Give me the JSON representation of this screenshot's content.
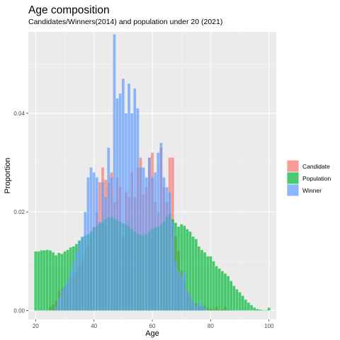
{
  "chart_data": {
    "type": "bar",
    "title": "Age composition",
    "subtitle": "Candidates/Winners(2014) and population under 20 (2021)",
    "xlabel": "Age",
    "ylabel": "Proportion",
    "xlim": [
      17.5,
      102.5
    ],
    "ylim": [
      -0.0018,
      0.0565
    ],
    "x_ticks": [
      20,
      40,
      60,
      80,
      100
    ],
    "y_ticks": [
      0.0,
      0.02,
      0.04
    ],
    "y_tick_labels": [
      "0.00",
      "0.02",
      "0.04"
    ],
    "grid": true,
    "legend_position": "right",
    "legend_title": "",
    "x_start": 20,
    "series": [
      {
        "name": "Candidate",
        "color": "#F8766D",
        "start": 25,
        "values": [
          0.0008,
          0.0012,
          0.002,
          0.004,
          0.0045,
          0.005,
          0.0055,
          0.0065,
          0.007,
          0.008,
          0.009,
          0.01,
          0.012,
          0.013,
          0.015,
          0.017,
          0.02,
          0.026,
          0.029,
          0.0265,
          0.026,
          0.028,
          0.022,
          0.027,
          0.025,
          0.015,
          0.024,
          0.023,
          0.028,
          0.023,
          0.029,
          0.031,
          0.0235,
          0.025,
          0.031,
          0.032,
          0.022,
          0.02,
          0.033,
          0.025,
          0.022,
          0.031,
          0.031,
          0.015,
          0.012,
          0.008,
          0.006,
          0.004,
          0.003,
          0.002,
          0.0015,
          0.0012,
          0.0008,
          0.001,
          0.0006,
          0.0004,
          0.0003,
          0.0008,
          0.0002,
          0.0002,
          0.0008,
          0.0001
        ]
      },
      {
        "name": "Population",
        "color": "#00BA38",
        "start": 20,
        "values": [
          0.012,
          0.012,
          0.0122,
          0.0122,
          0.0123,
          0.0122,
          0.0118,
          0.0112,
          0.0117,
          0.0115,
          0.012,
          0.0123,
          0.0128,
          0.013,
          0.0135,
          0.0142,
          0.0148,
          0.0152,
          0.0155,
          0.016,
          0.0168,
          0.0172,
          0.0176,
          0.018,
          0.0185,
          0.0188,
          0.019,
          0.0186,
          0.0183,
          0.018,
          0.0177,
          0.0174,
          0.017,
          0.0165,
          0.016,
          0.0156,
          0.0154,
          0.0152,
          0.0155,
          0.016,
          0.0165,
          0.0168,
          0.017,
          0.0175,
          0.018,
          0.019,
          0.0196,
          0.0185,
          0.0178,
          0.017,
          0.0175,
          0.0172,
          0.0165,
          0.016,
          0.015,
          0.0145,
          0.013,
          0.0123,
          0.0118,
          0.011,
          0.011,
          0.01,
          0.009,
          0.0085,
          0.008,
          0.0075,
          0.007,
          0.006,
          0.005,
          0.0043,
          0.0037,
          0.003,
          0.0022,
          0.0016,
          0.0011,
          0.0006,
          0.0003,
          0.0002,
          0.0001,
          0.0001,
          0.0006
        ]
      },
      {
        "name": "Winner",
        "color": "#619CFF",
        "start": 27,
        "values": [
          0.0008,
          0.0025,
          0.004,
          0.005,
          0.006,
          0.008,
          0.01,
          0.012,
          0.014,
          0.015,
          0.02,
          0.027,
          0.029,
          0.028,
          0.027,
          0.018,
          0.026,
          0.023,
          0.033,
          0.027,
          0.056,
          0.043,
          0.044,
          0.047,
          0.04,
          0.046,
          0.04,
          0.045,
          0.041,
          0.029,
          0.029,
          0.027,
          0.031,
          0.027,
          0.028,
          0.032,
          0.034,
          0.027,
          0.025,
          0.024,
          0.018,
          0.01,
          0.008,
          0.007,
          0.008,
          0.004,
          0.003,
          0.002,
          0.0008,
          0.0015,
          0.001,
          0.0005
        ]
      }
    ]
  }
}
